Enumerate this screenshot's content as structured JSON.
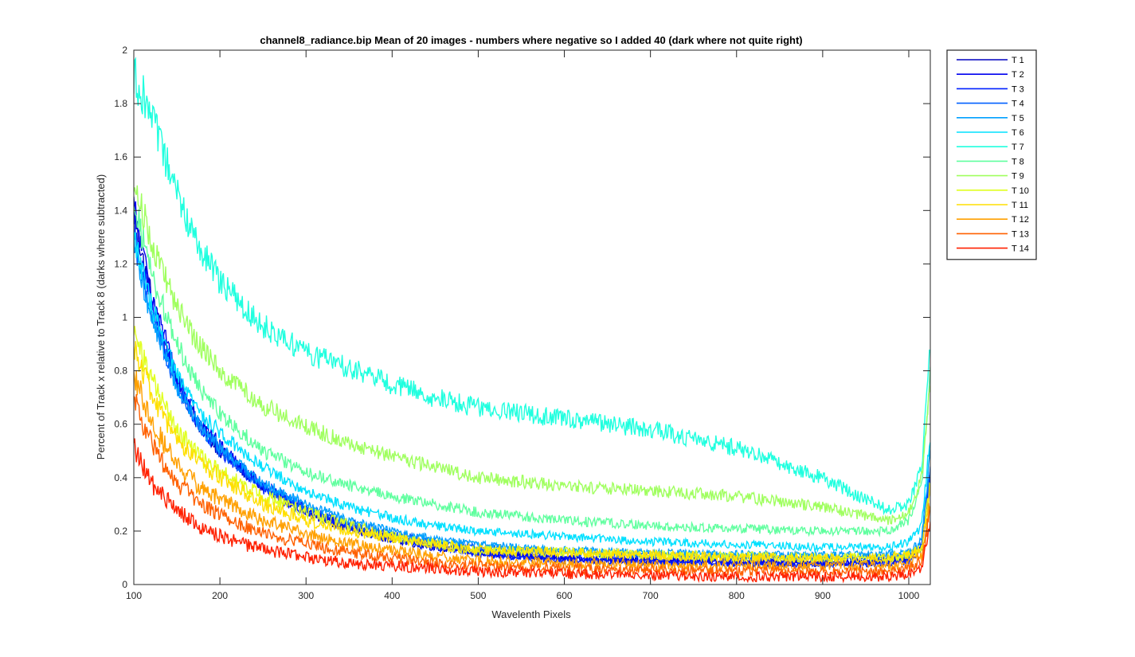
{
  "chart_data": {
    "type": "line",
    "title": "channel8_radiance.bip  Mean of 20 images - numbers where negative so I added 40 (dark where not quite right)",
    "xlabel": "Wavelenth Pixels",
    "ylabel": "Percent of Track x relative to Track 8 (darks where subtracted)",
    "xlim": [
      100,
      1025
    ],
    "ylim": [
      0,
      2
    ],
    "xticks": [
      100,
      200,
      300,
      400,
      500,
      600,
      700,
      800,
      900,
      1000
    ],
    "yticks": [
      0,
      0.2,
      0.4,
      0.6,
      0.8,
      1,
      1.2,
      1.4,
      1.6,
      1.8,
      2
    ],
    "grid": false,
    "legend_position": "outside-top-right",
    "x": [
      100,
      110,
      125,
      150,
      175,
      200,
      250,
      300,
      350,
      400,
      450,
      500,
      600,
      700,
      800,
      900,
      975,
      1000,
      1015,
      1025
    ],
    "series": [
      {
        "name": "T 1",
        "color": "#0000bf",
        "noise": 0.03,
        "values": [
          1.4,
          1.22,
          1.02,
          0.76,
          0.6,
          0.5,
          0.36,
          0.27,
          0.21,
          0.17,
          0.14,
          0.12,
          0.095,
          0.09,
          0.085,
          0.08,
          0.09,
          0.1,
          0.14,
          0.44
        ]
      },
      {
        "name": "T 2",
        "color": "#0000ef",
        "noise": 0.03,
        "values": [
          1.42,
          1.24,
          1.04,
          0.78,
          0.62,
          0.52,
          0.37,
          0.28,
          0.22,
          0.18,
          0.15,
          0.12,
          0.1,
          0.09,
          0.085,
          0.08,
          0.085,
          0.1,
          0.15,
          0.42
        ]
      },
      {
        "name": "T 3",
        "color": "#0020ff",
        "noise": 0.028,
        "values": [
          1.36,
          1.18,
          1.0,
          0.75,
          0.6,
          0.5,
          0.36,
          0.27,
          0.21,
          0.17,
          0.14,
          0.115,
          0.09,
          0.085,
          0.08,
          0.075,
          0.08,
          0.09,
          0.13,
          0.4
        ]
      },
      {
        "name": "T 4",
        "color": "#0060ff",
        "noise": 0.028,
        "values": [
          1.3,
          1.14,
          0.97,
          0.74,
          0.6,
          0.5,
          0.37,
          0.29,
          0.23,
          0.19,
          0.16,
          0.14,
          0.12,
          0.11,
          0.105,
          0.1,
          0.105,
          0.11,
          0.15,
          0.45
        ]
      },
      {
        "name": "T 5",
        "color": "#00a0ff",
        "noise": 0.028,
        "values": [
          1.28,
          1.12,
          0.96,
          0.74,
          0.6,
          0.51,
          0.38,
          0.3,
          0.24,
          0.2,
          0.17,
          0.15,
          0.13,
          0.12,
          0.115,
          0.11,
          0.115,
          0.12,
          0.17,
          0.5
        ]
      },
      {
        "name": "T 6",
        "color": "#00e0ff",
        "noise": 0.03,
        "values": [
          1.32,
          1.16,
          1.0,
          0.78,
          0.65,
          0.57,
          0.44,
          0.35,
          0.29,
          0.25,
          0.22,
          0.2,
          0.18,
          0.16,
          0.15,
          0.14,
          0.14,
          0.16,
          0.22,
          0.56
        ]
      },
      {
        "name": "T 7",
        "color": "#20ffdf",
        "noise": 0.035,
        "values": [
          1.9,
          1.84,
          1.7,
          1.46,
          1.27,
          1.13,
          0.97,
          0.87,
          0.81,
          0.75,
          0.7,
          0.66,
          0.62,
          0.58,
          0.51,
          0.4,
          0.28,
          0.3,
          0.45,
          0.88
        ]
      },
      {
        "name": "T 8",
        "color": "#60ff9f",
        "noise": 0.03,
        "values": [
          1.45,
          1.3,
          1.12,
          0.9,
          0.74,
          0.64,
          0.5,
          0.42,
          0.37,
          0.33,
          0.3,
          0.27,
          0.24,
          0.22,
          0.21,
          0.2,
          0.2,
          0.24,
          0.38,
          0.8
        ]
      },
      {
        "name": "T 9",
        "color": "#a0ff5f",
        "noise": 0.032,
        "values": [
          1.5,
          1.4,
          1.24,
          1.04,
          0.9,
          0.8,
          0.67,
          0.59,
          0.53,
          0.48,
          0.44,
          0.4,
          0.37,
          0.35,
          0.33,
          0.29,
          0.24,
          0.27,
          0.4,
          0.78
        ]
      },
      {
        "name": "T 10",
        "color": "#e0ff1f",
        "noise": 0.04,
        "values": [
          0.95,
          0.85,
          0.74,
          0.58,
          0.48,
          0.42,
          0.33,
          0.27,
          0.22,
          0.18,
          0.15,
          0.13,
          0.12,
          0.11,
          0.105,
          0.1,
          0.1,
          0.11,
          0.14,
          0.38
        ]
      },
      {
        "name": "T 11",
        "color": "#ffdf00",
        "noise": 0.04,
        "values": [
          0.9,
          0.8,
          0.68,
          0.54,
          0.46,
          0.4,
          0.3,
          0.24,
          0.2,
          0.17,
          0.15,
          0.13,
          0.12,
          0.11,
          0.1,
          0.1,
          0.1,
          0.11,
          0.14,
          0.36
        ]
      },
      {
        "name": "T 12",
        "color": "#ffa000",
        "noise": 0.045,
        "values": [
          0.8,
          0.7,
          0.58,
          0.45,
          0.37,
          0.32,
          0.24,
          0.19,
          0.15,
          0.13,
          0.11,
          0.09,
          0.08,
          0.075,
          0.07,
          0.07,
          0.07,
          0.08,
          0.11,
          0.32
        ]
      },
      {
        "name": "T 13",
        "color": "#ff6000",
        "noise": 0.045,
        "values": [
          0.7,
          0.6,
          0.5,
          0.38,
          0.31,
          0.26,
          0.19,
          0.15,
          0.12,
          0.1,
          0.08,
          0.07,
          0.06,
          0.055,
          0.05,
          0.05,
          0.05,
          0.06,
          0.09,
          0.28
        ]
      },
      {
        "name": "T 14",
        "color": "#ff2000",
        "noise": 0.05,
        "values": [
          0.52,
          0.44,
          0.36,
          0.28,
          0.22,
          0.18,
          0.13,
          0.1,
          0.08,
          0.07,
          0.06,
          0.05,
          0.04,
          0.035,
          0.03,
          0.03,
          0.03,
          0.04,
          0.06,
          0.22
        ]
      }
    ]
  }
}
